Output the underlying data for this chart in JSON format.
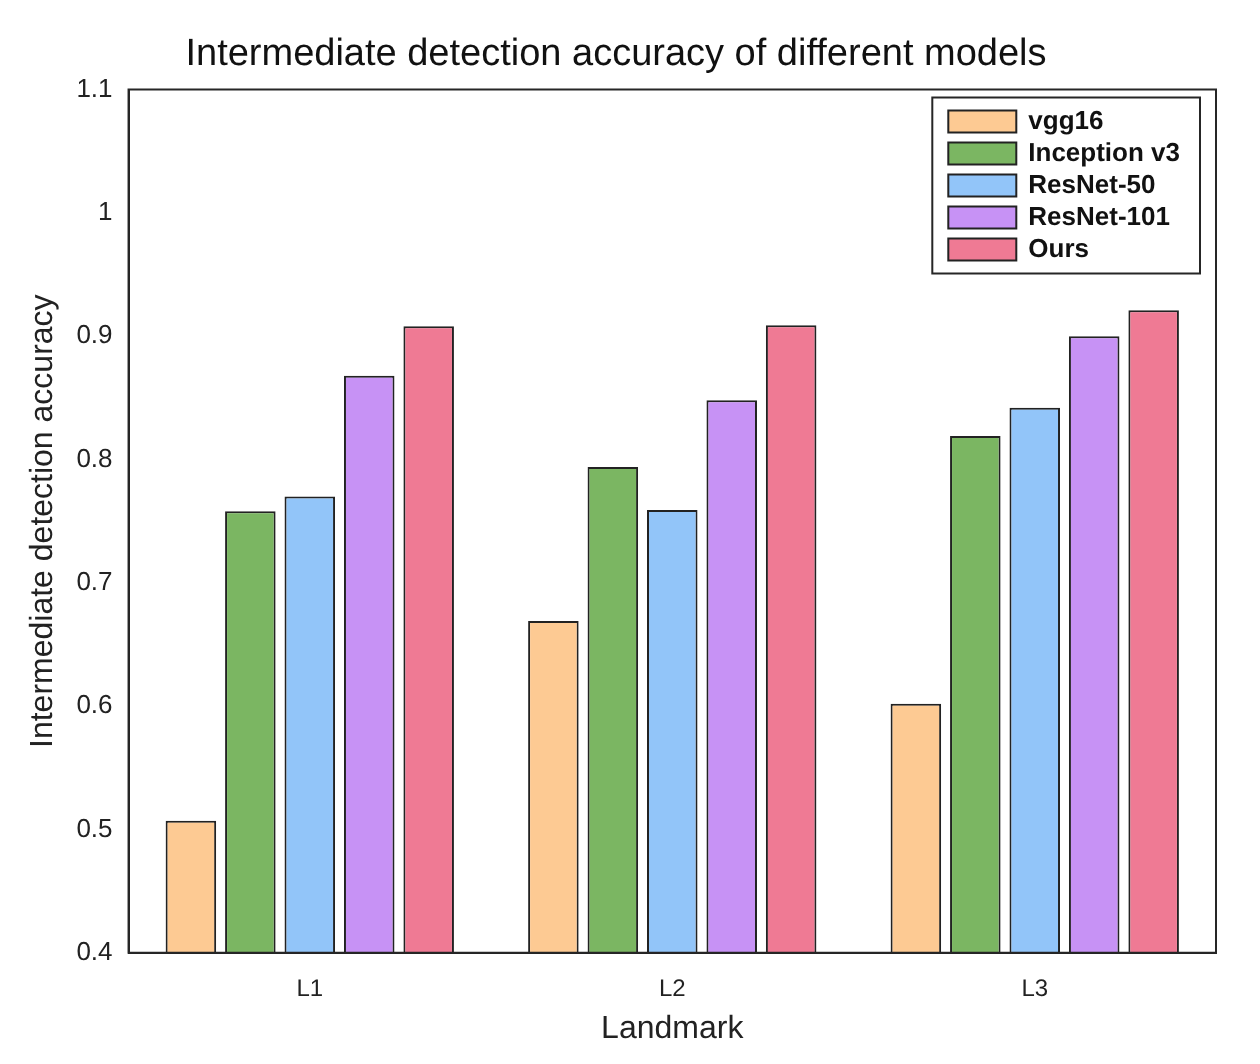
{
  "chart_data": {
    "type": "bar",
    "title": "Intermediate detection accuracy of different models",
    "xlabel": "Landmark",
    "ylabel": "Intermediate detection accuracy",
    "categories": [
      "L1",
      "L2",
      "L3"
    ],
    "series": [
      {
        "name": "vgg16",
        "color": "#fdca93",
        "values": [
          0.507,
          0.669,
          0.602
        ]
      },
      {
        "name": "Inception v3",
        "color": "#7bb662",
        "values": [
          0.758,
          0.794,
          0.819
        ]
      },
      {
        "name": "ResNet-50",
        "color": "#92c5f9",
        "values": [
          0.77,
          0.759,
          0.842
        ]
      },
      {
        "name": "ResNet-101",
        "color": "#c792f5",
        "values": [
          0.868,
          0.848,
          0.9
        ]
      },
      {
        "name": "Ours",
        "color": "#ef7a94",
        "values": [
          0.908,
          0.909,
          0.921
        ]
      }
    ],
    "ylim": [
      0.4,
      1.1
    ],
    "yticks": [
      0.4,
      0.5,
      0.6,
      0.7,
      0.8,
      0.9,
      1,
      1.1
    ],
    "grid": false,
    "legend": "top right"
  }
}
